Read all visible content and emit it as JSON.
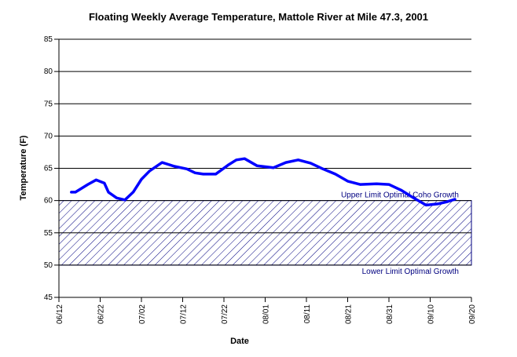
{
  "chart_data": {
    "type": "line",
    "title": "Floating Weekly Average Temperature, Mattole River at Mile 47.3, 2001",
    "xlabel": "Date",
    "ylabel": "Temperature (F)",
    "xlim": [
      "06/12",
      "09/20"
    ],
    "xticks": [
      "06/12",
      "06/22",
      "07/02",
      "07/12",
      "07/22",
      "08/01",
      "08/11",
      "08/21",
      "08/31",
      "09/10",
      "09/20"
    ],
    "ylim": [
      45,
      85
    ],
    "yticks": [
      45,
      50,
      55,
      60,
      65,
      70,
      75,
      80,
      85
    ],
    "grid": true,
    "series": [
      {
        "color": "#0000ff",
        "x": [
          "06/15",
          "06/16",
          "06/19",
          "06/21",
          "06/23",
          "06/24",
          "06/26",
          "06/28",
          "06/30",
          "07/02",
          "07/04",
          "07/07",
          "07/10",
          "07/13",
          "07/15",
          "07/17",
          "07/20",
          "07/23",
          "07/25",
          "07/27",
          "07/30",
          "08/03",
          "08/06",
          "08/09",
          "08/12",
          "08/15",
          "08/18",
          "08/21",
          "08/24",
          "08/28",
          "08/31",
          "09/03",
          "09/06",
          "09/09",
          "09/12",
          "09/14",
          "09/16"
        ],
        "values": [
          61.3,
          61.3,
          62.5,
          63.2,
          62.7,
          61.3,
          60.4,
          60.1,
          61.3,
          63.3,
          64.6,
          65.9,
          65.3,
          64.9,
          64.3,
          64.1,
          64.1,
          65.5,
          66.3,
          66.5,
          65.4,
          65.1,
          65.9,
          66.3,
          65.8,
          64.9,
          64.1,
          63.0,
          62.5,
          62.6,
          62.5,
          61.6,
          60.4,
          59.3,
          59.5,
          59.8,
          60.2
        ]
      }
    ],
    "optimal_range": {
      "lower": 50,
      "upper": 60,
      "color": "#000080",
      "upper_label": "Upper Limit Optimal Coho Growth",
      "lower_label": "Lower Limit Optimal Growth"
    }
  }
}
